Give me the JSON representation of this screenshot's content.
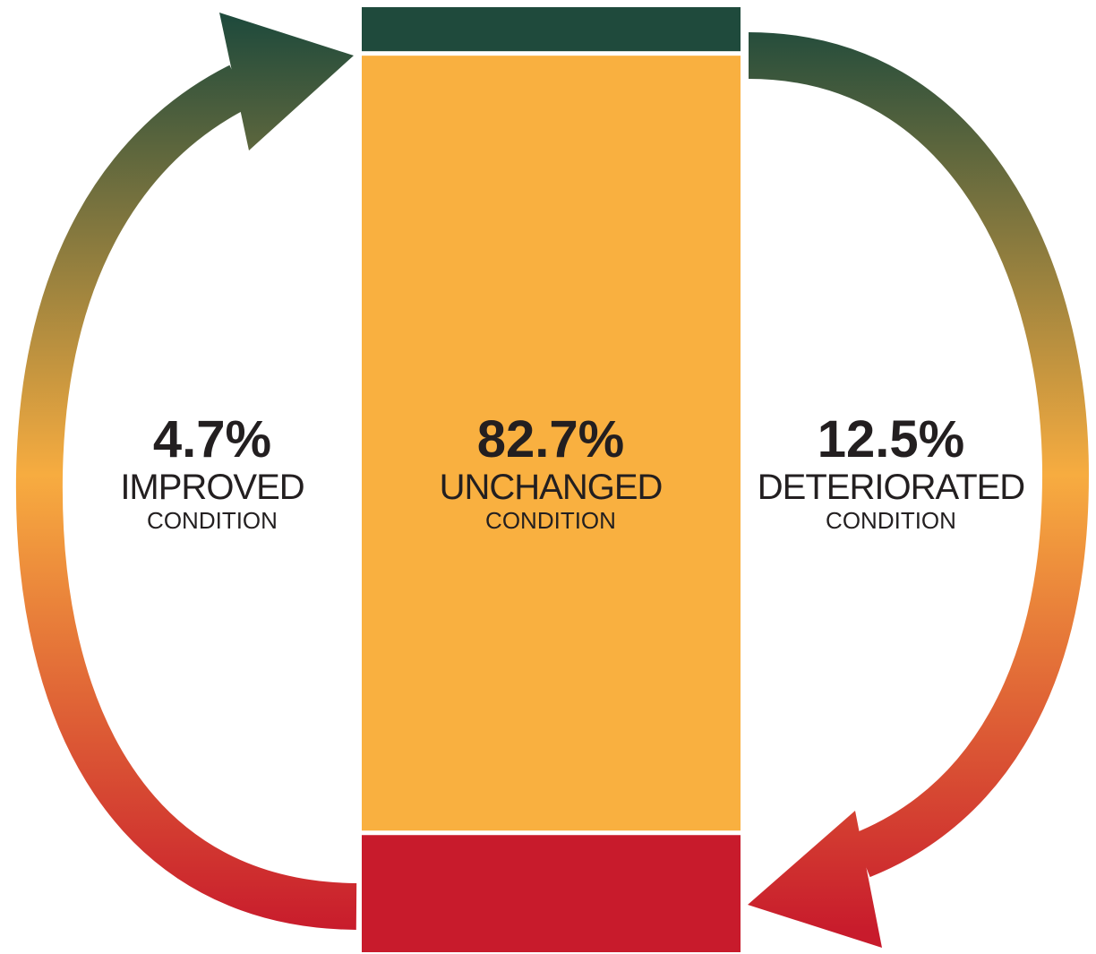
{
  "segments": [
    {
      "name": "IMPROVED",
      "note": "CONDITION",
      "value": 4.7,
      "value_label": "4.7%",
      "color": "#1f4a3c"
    },
    {
      "name": "UNCHANGED",
      "note": "CONDITION",
      "value": 82.7,
      "value_label": "82.7%",
      "color": "#f9b040"
    },
    {
      "name": "DETERIORATED",
      "note": "CONDITION",
      "value": 12.5,
      "value_label": "12.5%",
      "color": "#c81b2c"
    }
  ]
}
